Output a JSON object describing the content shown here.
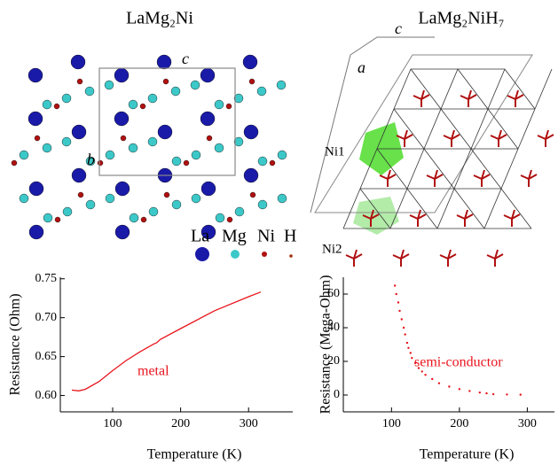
{
  "structures": {
    "left": {
      "title": "LaMg₂Ni",
      "labels": [
        "c",
        "b"
      ]
    },
    "right": {
      "title": "LaMg₂NiH₇",
      "labels": [
        "c",
        "a",
        "Ni1",
        "Ni2"
      ]
    },
    "legend": [
      "La",
      "Mg",
      "Ni",
      "H"
    ]
  },
  "chart_data": [
    {
      "type": "line",
      "xlabel": "Temperature (K)",
      "ylabel": "Resistance (Ohm)",
      "annotation": "metal",
      "color": "#e8141c",
      "x": [
        40,
        50,
        60,
        80,
        100,
        120,
        140,
        160,
        165,
        170,
        200,
        250,
        300,
        318
      ],
      "values": [
        0.607,
        0.606,
        0.608,
        0.618,
        0.632,
        0.645,
        0.656,
        0.666,
        0.668,
        0.672,
        0.686,
        0.709,
        0.727,
        0.733
      ],
      "xlim": [
        23,
        365
      ],
      "ylim": [
        0.579,
        0.752
      ],
      "xticks": [
        100,
        200,
        300
      ],
      "yticks": [
        {
          "value": 0.6,
          "label": "0.60"
        },
        {
          "value": 0.65,
          "label": "0.65"
        },
        {
          "value": 0.7,
          "label": "0.70"
        },
        {
          "value": 0.75,
          "label": "0.75"
        }
      ]
    },
    {
      "type": "scatter",
      "xlabel": "Temperature (K)",
      "ylabel": "Resistance (Mega-Ohm)",
      "annotation": "semi-conductor",
      "color": "#e8141c",
      "x": [
        105,
        107,
        110,
        112,
        115,
        118,
        120,
        123,
        125,
        128,
        130,
        135,
        140,
        145,
        150,
        160,
        170,
        185,
        200,
        215,
        230,
        240,
        250,
        270,
        290
      ],
      "values": [
        65,
        60,
        55,
        50,
        45,
        40,
        36,
        31,
        28,
        25,
        22,
        19,
        16,
        14,
        12,
        9.5,
        7,
        5,
        3.5,
        2.4,
        1.5,
        1,
        0.5,
        0.3,
        0.2
      ],
      "xlim": [
        29,
        340
      ],
      "ylim": [
        -10,
        70
      ],
      "xticks": [
        100,
        200,
        300
      ],
      "yticks": [
        0,
        20,
        40,
        60
      ]
    }
  ]
}
